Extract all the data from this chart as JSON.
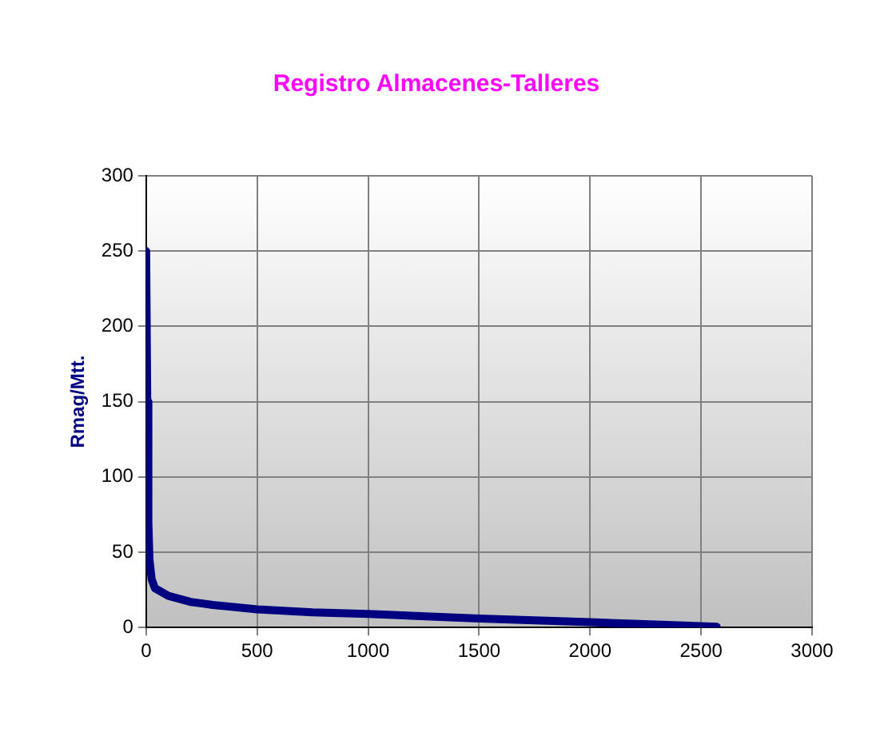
{
  "chart_data": {
    "type": "line",
    "title": "Registro Almacenes-Talleres",
    "ylabel": "Rmag/Mtt.",
    "x": [
      0,
      5,
      10,
      15,
      25,
      40,
      100,
      200,
      300,
      500,
      750,
      1000,
      1500,
      2000,
      2300,
      2570
    ],
    "series": [
      {
        "color": "#000080",
        "values": [
          250,
          150,
          70,
          45,
          32,
          26,
          21,
          17,
          15,
          12,
          10,
          9,
          6,
          3.5,
          2,
          0.5
        ]
      }
    ],
    "xlim": [
      0,
      3000
    ],
    "xticks": [
      0,
      500,
      1000,
      1500,
      2000,
      2500,
      3000
    ],
    "ylim": [
      0,
      300
    ],
    "yticks": [
      0,
      50,
      100,
      150,
      200,
      250,
      300
    ],
    "grid": true,
    "legend": false,
    "marker": "none",
    "line_style": "solid"
  }
}
